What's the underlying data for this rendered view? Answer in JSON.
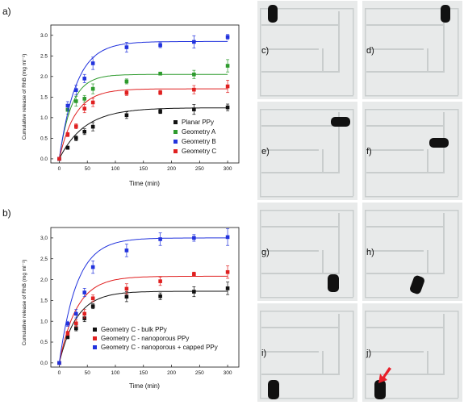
{
  "panels": {
    "a": {
      "letter": "a)",
      "xlabel": "Time (min)",
      "ylabel": "Cumulative release of RhB (mg ml⁻¹)",
      "xticks": [
        "0",
        "50",
        "100",
        "150",
        "200",
        "250",
        "300"
      ],
      "yticks": [
        "0.0",
        "0.5",
        "1.0",
        "1.5",
        "2.0",
        "2.5",
        "3.0"
      ]
    },
    "b": {
      "letter": "b)",
      "xlabel": "Time (min)",
      "ylabel": "Cumulative release of RhB (mg ml⁻¹)",
      "xticks": [
        "0",
        "50",
        "100",
        "150",
        "200",
        "250",
        "300"
      ],
      "yticks": [
        "0,0",
        "0,5",
        "1,0",
        "1,5",
        "2,0",
        "2,5",
        "3,0"
      ]
    }
  },
  "chart_data": [
    {
      "type": "scatter",
      "panel": "a",
      "xlabel": "Time (min)",
      "ylabel": "Cumulative release of RhB (mg ml⁻¹)",
      "xlim": [
        -15,
        320
      ],
      "ylim": [
        -0.1,
        3.25
      ],
      "legend_position": "right",
      "series": [
        {
          "name": "Planar PPy",
          "color": "#111111",
          "x": [
            0,
            15,
            30,
            45,
            60,
            120,
            180,
            240,
            300
          ],
          "y": [
            0,
            0.27,
            0.5,
            0.66,
            0.78,
            1.06,
            1.15,
            1.2,
            1.25
          ],
          "err": [
            0,
            0.04,
            0.06,
            0.07,
            0.1,
            0.08,
            0.05,
            0.12,
            0.08
          ],
          "fit": {
            "a": 1.24,
            "k": 0.022
          }
        },
        {
          "name": "Geometry A",
          "color": "#2e9b2e",
          "x": [
            0,
            15,
            30,
            45,
            60,
            120,
            180,
            240,
            300
          ],
          "y": [
            0,
            1.19,
            1.4,
            1.46,
            1.7,
            1.88,
            2.07,
            2.05,
            2.26
          ],
          "err": [
            0,
            0.1,
            0.12,
            0.08,
            0.12,
            0.06,
            0.03,
            0.1,
            0.15
          ],
          "fit": {
            "a": 2.05,
            "k": 0.045
          }
        },
        {
          "name": "Geometry B",
          "color": "#2233dd",
          "x": [
            0,
            15,
            30,
            45,
            60,
            120,
            180,
            240,
            300
          ],
          "y": [
            0,
            1.29,
            1.67,
            1.95,
            2.32,
            2.71,
            2.76,
            2.84,
            2.96
          ],
          "err": [
            0,
            0.1,
            0.12,
            0.1,
            0.15,
            0.12,
            0.06,
            0.15,
            0.06
          ],
          "fit": {
            "a": 2.85,
            "k": 0.033
          }
        },
        {
          "name": "Geometry C",
          "color": "#e02020",
          "x": [
            0,
            15,
            30,
            45,
            60,
            120,
            180,
            240,
            300
          ],
          "y": [
            0,
            0.59,
            0.79,
            1.22,
            1.37,
            1.6,
            1.61,
            1.68,
            1.76
          ],
          "err": [
            0,
            0.05,
            0.06,
            0.1,
            0.1,
            0.06,
            0.05,
            0.1,
            0.15
          ],
          "fit": {
            "a": 1.7,
            "k": 0.035
          }
        }
      ]
    },
    {
      "type": "scatter",
      "panel": "b",
      "xlabel": "Time (min)",
      "ylabel": "Cumulative release of RhB (mg ml⁻¹)",
      "xlim": [
        -15,
        320
      ],
      "ylim": [
        -0.1,
        3.25
      ],
      "legend_position": "bottom-right",
      "series": [
        {
          "name": "Geometry C - bulk PPy",
          "color": "#111111",
          "x": [
            0,
            15,
            30,
            45,
            60,
            120,
            180,
            240,
            300
          ],
          "y": [
            0,
            0.62,
            0.83,
            1.07,
            1.36,
            1.59,
            1.6,
            1.71,
            1.79
          ],
          "err": [
            0,
            0.04,
            0.06,
            0.08,
            0.06,
            0.12,
            0.08,
            0.12,
            0.15
          ],
          "fit": {
            "a": 1.72,
            "k": 0.032
          }
        },
        {
          "name": "Geometry C - nanoporous PPy",
          "color": "#e02020",
          "x": [
            0,
            15,
            30,
            45,
            60,
            120,
            180,
            240,
            300
          ],
          "y": [
            0,
            0.71,
            0.95,
            1.18,
            1.55,
            1.78,
            1.96,
            2.13,
            2.18
          ],
          "err": [
            0,
            0.05,
            0.08,
            0.1,
            0.08,
            0.12,
            0.1,
            0.05,
            0.15
          ],
          "fit": {
            "a": 2.08,
            "k": 0.032
          }
        },
        {
          "name": "Geometry C - nanoporous + capped PPy",
          "color": "#2233dd",
          "x": [
            0,
            15,
            30,
            45,
            60,
            120,
            180,
            240,
            300
          ],
          "y": [
            0,
            0.94,
            1.18,
            1.69,
            2.3,
            2.7,
            2.97,
            3.0,
            3.02
          ],
          "err": [
            0,
            0.06,
            0.1,
            0.1,
            0.15,
            0.15,
            0.15,
            0.08,
            0.2
          ],
          "fit": {
            "a": 3.0,
            "k": 0.032
          }
        }
      ]
    }
  ],
  "photos": {
    "labels": [
      "c)",
      "d)",
      "e)",
      "f)",
      "g)",
      "h)",
      "i)",
      "j)"
    ],
    "tint": "#e8eaea",
    "frame": "#c9cdcd",
    "object": "#111111",
    "arrow": "#e8202a"
  }
}
